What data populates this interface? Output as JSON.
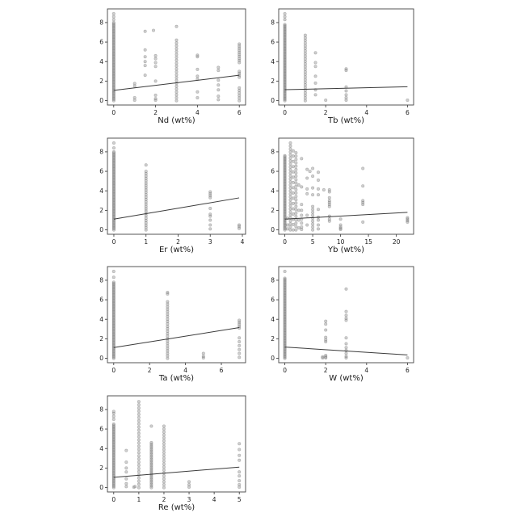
{
  "figure": {
    "background_color": "#ffffff",
    "marker_color": "#8c8c8c",
    "marker_edge_color": "#7a7a7a",
    "trend_line_color": "#3a3a3a",
    "spine_color": "#444444",
    "tick_label_color": "#1a1a1a",
    "grid": "off",
    "legend": "none"
  },
  "chart_data": [
    {
      "type": "scatter",
      "xlabel": "Nd (wt%)",
      "ylabel": "",
      "xlim": [
        -0.3,
        6.3
      ],
      "ylim": [
        -0.45,
        9.4
      ],
      "xticks": [
        0,
        2,
        4,
        6
      ],
      "yticks": [
        0,
        2,
        4,
        6,
        8
      ],
      "trend": {
        "x": [
          0,
          6
        ],
        "y": [
          1.05,
          2.6
        ]
      },
      "columns": [
        {
          "x": 0,
          "ymin": 0,
          "ymax": 8.0,
          "n": 70
        },
        {
          "x": 3,
          "ymin": 0,
          "ymax": 6.2,
          "n": 22
        },
        {
          "x": 6,
          "ymin": 0,
          "ymax": 1.3,
          "n": 6
        },
        {
          "x": 6,
          "ymin": 2.4,
          "ymax": 3.0,
          "n": 4
        },
        {
          "x": 6,
          "ymin": 3.9,
          "ymax": 5.8,
          "n": 10
        }
      ],
      "points": [
        [
          0,
          8.3
        ],
        [
          0,
          8.6
        ],
        [
          0,
          8.9
        ],
        [
          1,
          0.05
        ],
        [
          1,
          0.3
        ],
        [
          1,
          1.5
        ],
        [
          1,
          1.75
        ],
        [
          1.5,
          2.6
        ],
        [
          1.5,
          3.6
        ],
        [
          1.5,
          4.0
        ],
        [
          1.5,
          4.5
        ],
        [
          1.5,
          5.2
        ],
        [
          1.5,
          7.1
        ],
        [
          2,
          0.05
        ],
        [
          2,
          0.2
        ],
        [
          2,
          0.55
        ],
        [
          2,
          2.0
        ],
        [
          2,
          3.5
        ],
        [
          2,
          3.9
        ],
        [
          2,
          4.3
        ],
        [
          2,
          4.6
        ],
        [
          1.9,
          7.2
        ],
        [
          3,
          7.6
        ],
        [
          4,
          0.3
        ],
        [
          4,
          0.9
        ],
        [
          4,
          2.2
        ],
        [
          4,
          2.5
        ],
        [
          4,
          3.2
        ],
        [
          4,
          4.5
        ],
        [
          4,
          4.65
        ],
        [
          5,
          0.1
        ],
        [
          5,
          0.45
        ],
        [
          5,
          1.1
        ],
        [
          5,
          1.6
        ],
        [
          5,
          2.1
        ],
        [
          5,
          3.1
        ],
        [
          5,
          3.4
        ]
      ]
    },
    {
      "type": "scatter",
      "xlabel": "Tb (wt%)",
      "ylabel": "",
      "xlim": [
        -0.3,
        6.3
      ],
      "ylim": [
        -0.45,
        9.4
      ],
      "xticks": [
        0,
        2,
        4,
        6
      ],
      "yticks": [
        0,
        2,
        4,
        6,
        8
      ],
      "trend": {
        "x": [
          0,
          6
        ],
        "y": [
          1.12,
          1.42
        ]
      },
      "columns": [
        {
          "x": 0,
          "ymin": 0,
          "ymax": 7.8,
          "n": 68
        },
        {
          "x": 1,
          "ymin": 0,
          "ymax": 6.7,
          "n": 26
        }
      ],
      "points": [
        [
          0,
          8.3
        ],
        [
          0,
          8.6
        ],
        [
          0,
          8.9
        ],
        [
          1.5,
          0.6
        ],
        [
          1.5,
          1.1
        ],
        [
          1.5,
          1.8
        ],
        [
          1.5,
          2.5
        ],
        [
          1.5,
          3.5
        ],
        [
          1.5,
          3.9
        ],
        [
          1.5,
          4.9
        ],
        [
          2,
          0.05
        ],
        [
          3,
          0.05
        ],
        [
          3,
          0.3
        ],
        [
          3,
          0.6
        ],
        [
          3,
          1.0
        ],
        [
          3,
          1.4
        ],
        [
          3,
          3.1
        ],
        [
          3,
          3.25
        ],
        [
          6,
          0.05
        ]
      ]
    },
    {
      "type": "scatter",
      "xlabel": "Er (wt%)",
      "ylabel": "",
      "xlim": [
        -0.2,
        4.1
      ],
      "ylim": [
        -0.45,
        9.4
      ],
      "xticks": [
        0,
        1,
        2,
        3,
        4
      ],
      "yticks": [
        0,
        2,
        4,
        6,
        8
      ],
      "trend": {
        "x": [
          0,
          3.9
        ],
        "y": [
          1.1,
          3.28
        ]
      },
      "columns": [
        {
          "x": 0,
          "ymin": 0,
          "ymax": 8.0,
          "n": 70
        },
        {
          "x": 1,
          "ymin": 0,
          "ymax": 6.0,
          "n": 26
        }
      ],
      "points": [
        [
          0,
          8.4
        ],
        [
          0,
          8.9
        ],
        [
          1,
          6.65
        ],
        [
          3,
          0.1
        ],
        [
          3,
          0.5
        ],
        [
          3,
          1.0
        ],
        [
          3,
          1.4
        ],
        [
          3,
          1.6
        ],
        [
          3,
          2.2
        ],
        [
          3,
          3.3
        ],
        [
          3,
          3.5
        ],
        [
          3,
          3.7
        ],
        [
          3,
          3.9
        ],
        [
          3.9,
          0.15
        ],
        [
          3.9,
          0.35
        ],
        [
          3.9,
          0.5
        ]
      ]
    },
    {
      "type": "scatter",
      "xlabel": "Yb (wt%)",
      "ylabel": "",
      "xlim": [
        -1.1,
        23.1
      ],
      "ylim": [
        -0.45,
        9.4
      ],
      "xticks": [
        0,
        5,
        10,
        15,
        20
      ],
      "yticks": [
        0,
        2,
        4,
        6,
        8
      ],
      "trend": {
        "x": [
          0,
          22
        ],
        "y": [
          1.1,
          1.8
        ]
      },
      "columns": [
        {
          "x": 0,
          "ymin": 0,
          "ymax": 7.6,
          "n": 66
        },
        {
          "x": 1,
          "ymin": 0,
          "ymax": 8.9,
          "n": 30
        },
        {
          "x": 1.5,
          "ymin": 0,
          "ymax": 8.1,
          "n": 16
        },
        {
          "x": 2,
          "ymin": 0,
          "ymax": 7.9,
          "n": 24
        },
        {
          "x": 5,
          "ymin": 0,
          "ymax": 2.4,
          "n": 9
        }
      ],
      "points": [
        [
          0.5,
          0.1
        ],
        [
          0.5,
          0.5
        ],
        [
          0.5,
          1.2
        ],
        [
          2.5,
          0.2
        ],
        [
          2.5,
          1.0
        ],
        [
          2.5,
          2.0
        ],
        [
          2.5,
          4.6
        ],
        [
          3,
          0.05
        ],
        [
          3,
          0.3
        ],
        [
          3,
          0.7
        ],
        [
          3,
          1.1
        ],
        [
          3,
          1.5
        ],
        [
          3,
          2.0
        ],
        [
          3,
          2.6
        ],
        [
          3,
          4.4
        ],
        [
          3,
          7.3
        ],
        [
          4,
          0.5
        ],
        [
          4,
          1.5
        ],
        [
          4,
          3.7
        ],
        [
          4,
          4.2
        ],
        [
          4,
          5.3
        ],
        [
          4,
          6.2
        ],
        [
          4.5,
          6.0
        ],
        [
          5,
          3.6
        ],
        [
          5,
          4.3
        ],
        [
          5,
          5.5
        ],
        [
          5,
          6.3
        ],
        [
          6,
          0.1
        ],
        [
          6,
          0.5
        ],
        [
          6,
          1.0
        ],
        [
          6,
          1.3
        ],
        [
          6,
          2.1
        ],
        [
          6,
          3.6
        ],
        [
          6,
          4.2
        ],
        [
          6,
          5.1
        ],
        [
          6,
          5.9
        ],
        [
          7,
          4.1
        ],
        [
          8,
          0.9
        ],
        [
          8,
          1.1
        ],
        [
          8,
          1.4
        ],
        [
          8,
          2.4
        ],
        [
          8,
          2.6
        ],
        [
          8,
          2.8
        ],
        [
          8,
          3.0
        ],
        [
          8,
          3.3
        ],
        [
          8,
          3.9
        ],
        [
          8,
          4.1
        ],
        [
          10,
          0.05
        ],
        [
          10,
          0.15
        ],
        [
          10,
          0.3
        ],
        [
          10,
          0.5
        ],
        [
          10,
          1.1
        ],
        [
          14,
          0.8
        ],
        [
          14,
          2.6
        ],
        [
          14,
          2.8
        ],
        [
          14,
          3.0
        ],
        [
          14,
          4.5
        ],
        [
          14,
          6.3
        ],
        [
          22,
          0.8
        ],
        [
          22,
          0.95
        ],
        [
          22,
          1.1
        ],
        [
          22,
          1.25
        ]
      ]
    },
    {
      "type": "scatter",
      "xlabel": "Ta (wt%)",
      "ylabel": "",
      "xlim": [
        -0.35,
        7.35
      ],
      "ylim": [
        -0.45,
        9.4
      ],
      "xticks": [
        0,
        2,
        4,
        6
      ],
      "yticks": [
        0,
        2,
        4,
        6,
        8
      ],
      "trend": {
        "x": [
          0,
          7
        ],
        "y": [
          1.1,
          3.15
        ]
      },
      "columns": [
        {
          "x": 0,
          "ymin": 0,
          "ymax": 7.8,
          "n": 68
        },
        {
          "x": 3,
          "ymin": 0,
          "ymax": 5.8,
          "n": 24
        }
      ],
      "points": [
        [
          0,
          8.3
        ],
        [
          0,
          8.9
        ],
        [
          3,
          6.6
        ],
        [
          3,
          6.75
        ],
        [
          5,
          0.05
        ],
        [
          5,
          0.2
        ],
        [
          5,
          0.5
        ],
        [
          7,
          0.1
        ],
        [
          7,
          0.5
        ],
        [
          7,
          0.9
        ],
        [
          7,
          1.3
        ],
        [
          7,
          1.7
        ],
        [
          7,
          2.1
        ],
        [
          7,
          3.1
        ],
        [
          7,
          3.3
        ],
        [
          7,
          3.5
        ],
        [
          7,
          3.7
        ],
        [
          7,
          3.9
        ]
      ]
    },
    {
      "type": "scatter",
      "xlabel": "W (wt%)",
      "ylabel": "",
      "xlim": [
        -0.3,
        6.3
      ],
      "ylim": [
        -0.45,
        9.4
      ],
      "xticks": [
        0,
        2,
        4,
        6
      ],
      "yticks": [
        0,
        2,
        4,
        6,
        8
      ],
      "trend": {
        "x": [
          0,
          6
        ],
        "y": [
          1.15,
          0.35
        ]
      },
      "columns": [
        {
          "x": 0,
          "ymin": 0,
          "ymax": 8.2,
          "n": 70
        }
      ],
      "points": [
        [
          0,
          8.9
        ],
        [
          1.85,
          0.05
        ],
        [
          1.85,
          0.15
        ],
        [
          2,
          0.05
        ],
        [
          2,
          0.15
        ],
        [
          2,
          0.3
        ],
        [
          2,
          1.7
        ],
        [
          2,
          1.9
        ],
        [
          2,
          2.15
        ],
        [
          2,
          2.9
        ],
        [
          2,
          3.5
        ],
        [
          2,
          3.8
        ],
        [
          3,
          0.05
        ],
        [
          3,
          0.2
        ],
        [
          3,
          0.5
        ],
        [
          3,
          0.8
        ],
        [
          3,
          1.1
        ],
        [
          3,
          1.5
        ],
        [
          3,
          2.1
        ],
        [
          3,
          3.9
        ],
        [
          3,
          4.1
        ],
        [
          3,
          4.4
        ],
        [
          3,
          4.8
        ],
        [
          3,
          7.1
        ],
        [
          6,
          0.05
        ]
      ]
    },
    {
      "type": "scatter",
      "xlabel": "Re (wt%)",
      "ylabel": "",
      "xlim": [
        -0.25,
        5.25
      ],
      "ylim": [
        -0.45,
        9.4
      ],
      "xticks": [
        0,
        1,
        2,
        3,
        4,
        5
      ],
      "yticks": [
        0,
        2,
        4,
        6,
        8
      ],
      "trend": {
        "x": [
          0,
          5
        ],
        "y": [
          1.05,
          2.1
        ]
      },
      "columns": [
        {
          "x": 0,
          "ymin": 0,
          "ymax": 6.5,
          "n": 55
        },
        {
          "x": 1,
          "ymin": 0,
          "ymax": 8.8,
          "n": 28
        },
        {
          "x": 1.5,
          "ymin": 0,
          "ymax": 4.6,
          "n": 28
        },
        {
          "x": 2,
          "ymin": 0,
          "ymax": 6.3,
          "n": 22
        }
      ],
      "points": [
        [
          0,
          7.0
        ],
        [
          0,
          7.3
        ],
        [
          0,
          7.6
        ],
        [
          0,
          7.8
        ],
        [
          0.5,
          0.1
        ],
        [
          0.5,
          0.4
        ],
        [
          0.5,
          0.9
        ],
        [
          0.5,
          1.6
        ],
        [
          0.5,
          2.0
        ],
        [
          0.5,
          2.6
        ],
        [
          0.5,
          3.8
        ],
        [
          0.8,
          0.05
        ],
        [
          0.85,
          0.1
        ],
        [
          1.5,
          6.3
        ],
        [
          3,
          0.05
        ],
        [
          3,
          0.3
        ],
        [
          3,
          0.6
        ],
        [
          5,
          0.05
        ],
        [
          5,
          0.3
        ],
        [
          5,
          0.7
        ],
        [
          5,
          1.2
        ],
        [
          5,
          1.6
        ],
        [
          5,
          2.8
        ],
        [
          5,
          3.3
        ],
        [
          5,
          3.9
        ],
        [
          5,
          4.5
        ]
      ]
    }
  ]
}
